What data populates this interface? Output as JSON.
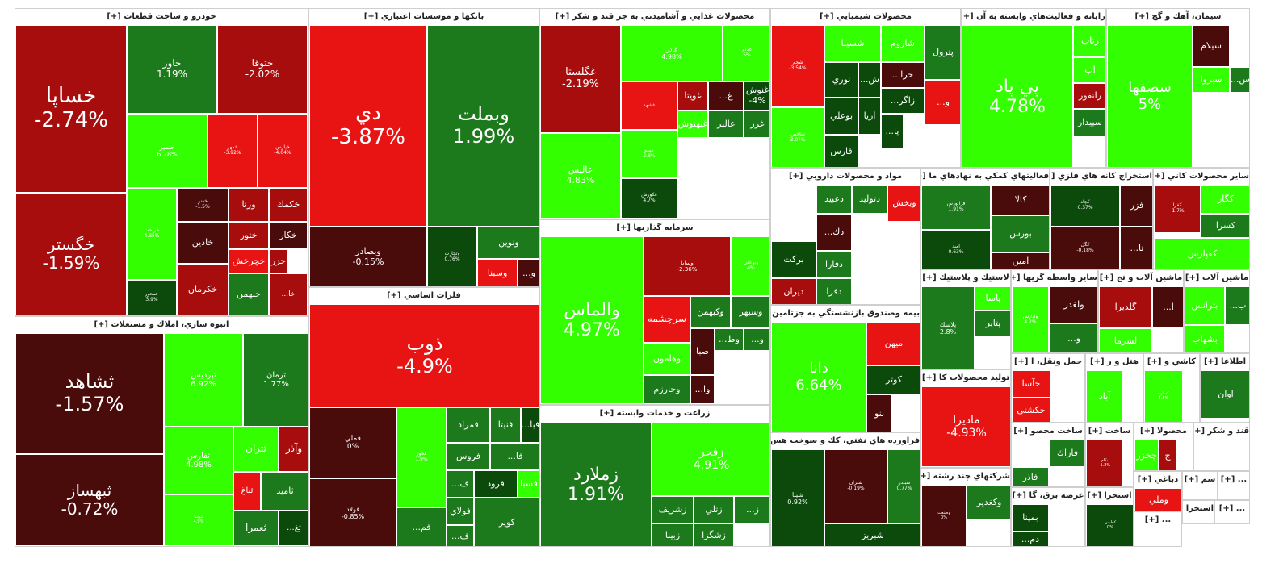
{
  "colors": {
    "dark_red": "#4a0b0b",
    "red": "#a80d0d",
    "bright_red": "#e81414",
    "dark_green": "#0c4a0c",
    "green": "#1c7a1c",
    "bright_green": "#33ff00"
  },
  "chart_data": {
    "type": "treemap",
    "title": "",
    "sectors": [
      {
        "name": "خودرو و ساخت قطعات [+]",
        "stocks": [
          {
            "symbol": "خساپا",
            "change": "-2.74%"
          },
          {
            "symbol": "خگستر",
            "change": "-1.59%"
          },
          {
            "symbol": "خاور",
            "change": "1.19%"
          },
          {
            "symbol": "ختوقا",
            "change": "-2.02%"
          },
          {
            "symbol": "ختمير",
            "change": "6.28%"
          },
          {
            "symbol": "خمهر",
            "change": "-3.92%"
          },
          {
            "symbol": "خپارس",
            "change": "-4.04%"
          },
          {
            "symbol": "خريخت",
            "change": "4.85%"
          },
          {
            "symbol": "خفنر",
            "change": "-1.5%"
          },
          {
            "symbol": "ورنا",
            "change": ""
          },
          {
            "symbol": "خكمك",
            "change": ""
          },
          {
            "symbol": "ختور",
            "change": ""
          },
          {
            "symbol": "خكار",
            "change": ""
          },
          {
            "symbol": "خاذين",
            "change": ""
          },
          {
            "symbol": "خچرخش",
            "change": ""
          },
          {
            "symbol": "خزر",
            "change": ""
          },
          {
            "symbol": "خمحور",
            "change": "3.9%"
          },
          {
            "symbol": "خكرمان",
            "change": ""
          },
          {
            "symbol": "خبهمن",
            "change": ""
          },
          {
            "symbol": "خا...",
            "change": ""
          }
        ]
      },
      {
        "name": "انبوه سازي، املاك و مستغلات [+]",
        "stocks": [
          {
            "symbol": "ثشاهد",
            "change": "-1.57%"
          },
          {
            "symbol": "ثبهساز",
            "change": "-0.72%"
          },
          {
            "symbol": "ثپرديس",
            "change": "6.92%"
          },
          {
            "symbol": "ثرمان",
            "change": "1.77%"
          },
          {
            "symbol": "ثفارس",
            "change": "4.98%"
          },
          {
            "symbol": "ثتران",
            "change": ""
          },
          {
            "symbol": "وآذر",
            "change": ""
          },
          {
            "symbol": "ثباغ",
            "change": ""
          },
          {
            "symbol": "ثاميد",
            "change": ""
          },
          {
            "symbol": "ثنوسا",
            "change": "4.9%"
          },
          {
            "symbol": "ثعمرا",
            "change": ""
          },
          {
            "symbol": "ثغ...",
            "change": ""
          }
        ]
      },
      {
        "name": "بانكها و موسسات اعتباري [+]",
        "stocks": [
          {
            "symbol": "دي",
            "change": "-3.87%"
          },
          {
            "symbol": "وبملت",
            "change": "1.99%"
          },
          {
            "symbol": "وبصادر",
            "change": "-0.15%"
          },
          {
            "symbol": "وتجارت",
            "change": "0.76%"
          },
          {
            "symbol": "ونوين",
            "change": ""
          },
          {
            "symbol": "وسينا",
            "change": ""
          },
          {
            "symbol": "و...",
            "change": ""
          }
        ]
      },
      {
        "name": "فلزات اساسي [+]",
        "stocks": [
          {
            "symbol": "ذوب",
            "change": "-4.9%"
          },
          {
            "symbol": "فملي",
            "change": "0%"
          },
          {
            "symbol": "فولاد",
            "change": "-0.85%"
          },
          {
            "symbol": "فخوز",
            "change": "1.9%"
          },
          {
            "symbol": "فمراد",
            "change": ""
          },
          {
            "symbol": "فنيتا",
            "change": ""
          },
          {
            "symbol": "فبا...",
            "change": ""
          },
          {
            "symbol": "فروس",
            "change": ""
          },
          {
            "symbol": "فا...",
            "change": ""
          },
          {
            "symbol": "ف...",
            "change": ""
          },
          {
            "symbol": "فرود",
            "change": ""
          },
          {
            "symbol": "فسبا",
            "change": ""
          },
          {
            "symbol": "فم...",
            "change": ""
          },
          {
            "symbol": "فولاي",
            "change": ""
          },
          {
            "symbol": "ف...",
            "change": ""
          },
          {
            "symbol": "كوير",
            "change": ""
          }
        ]
      },
      {
        "name": "محصولات غذايي و آشاميدني به جز قند و شكر [+]",
        "stocks": [
          {
            "symbol": "غگلستا",
            "change": "-2.19%"
          },
          {
            "symbol": "غاذر",
            "change": "4.98%"
          },
          {
            "symbol": "غدام",
            "change": "5%"
          },
          {
            "symbol": "عاليس",
            "change": "4.83%"
          },
          {
            "symbol": "غشهد",
            "change": ""
          },
          {
            "symbol": "غويتا",
            "change": ""
          },
          {
            "symbol": "غ...",
            "change": ""
          },
          {
            "symbol": "غنوش",
            "change": "-4%"
          },
          {
            "symbol": "غبهنوش",
            "change": ""
          },
          {
            "symbol": "غالبر",
            "change": ""
          },
          {
            "symbol": "غزر",
            "change": ""
          },
          {
            "symbol": "غپينو",
            "change": "3.8%"
          },
          {
            "symbol": "غكورش",
            "change": "4.7%"
          }
        ]
      },
      {
        "name": "سرمايه گذاريها [+]",
        "stocks": [
          {
            "symbol": "والماس",
            "change": "4.97%"
          },
          {
            "symbol": "وسايا",
            "change": "-2.36%"
          },
          {
            "symbol": "وبوعلي",
            "change": "4%"
          },
          {
            "symbol": "سرچشمه",
            "change": ""
          },
          {
            "symbol": "وكبهمن",
            "change": ""
          },
          {
            "symbol": "وسبهر",
            "change": ""
          },
          {
            "symbol": "وهامون",
            "change": ""
          },
          {
            "symbol": "صبا",
            "change": ""
          },
          {
            "symbol": "وخارزم",
            "change": ""
          },
          {
            "symbol": "وط...",
            "change": ""
          },
          {
            "symbol": "و...",
            "change": ""
          },
          {
            "symbol": "وا...",
            "change": ""
          }
        ]
      },
      {
        "name": "زراعت و خدمات وابسته [+]",
        "stocks": [
          {
            "symbol": "زملارد",
            "change": "1.91%"
          },
          {
            "symbol": "زفجر",
            "change": "4.91%"
          },
          {
            "symbol": "زشريف",
            "change": ""
          },
          {
            "symbol": "زتلي",
            "change": ""
          },
          {
            "symbol": "ز...",
            "change": ""
          },
          {
            "symbol": "زبينا",
            "change": ""
          },
          {
            "symbol": "زشگزا",
            "change": ""
          }
        ]
      },
      {
        "name": "محصولات شيميايي [+]",
        "stocks": [
          {
            "symbol": "شجم",
            "change": "-3.54%"
          },
          {
            "symbol": "شسينا",
            "change": ""
          },
          {
            "symbol": "شاروم",
            "change": ""
          },
          {
            "symbol": "پترول",
            "change": ""
          },
          {
            "symbol": "نوري",
            "change": ""
          },
          {
            "symbol": "ش...",
            "change": ""
          },
          {
            "symbol": "خرا...",
            "change": ""
          },
          {
            "symbol": "شاخص",
            "change": "3.07%"
          },
          {
            "symbol": "بوعلي",
            "change": ""
          },
          {
            "symbol": "زاگر...",
            "change": ""
          },
          {
            "symbol": "آريا",
            "change": ""
          },
          {
            "symbol": "و...",
            "change": ""
          },
          {
            "symbol": "فارس",
            "change": ""
          },
          {
            "symbol": "پا...",
            "change": ""
          }
        ]
      },
      {
        "name": "رايانه و فعاليت‌هاي وابسته به آن [+]",
        "stocks": [
          {
            "symbol": "پي پاد",
            "change": "4.78%"
          },
          {
            "symbol": "رتاب",
            "change": ""
          },
          {
            "symbol": "آپ",
            "change": ""
          },
          {
            "symbol": "رانفور",
            "change": ""
          },
          {
            "symbol": "سپيدار",
            "change": ""
          }
        ]
      },
      {
        "name": "سيمان، آهك و گچ [+]",
        "stocks": [
          {
            "symbol": "سصفها",
            "change": "5%"
          },
          {
            "symbol": "سيلام",
            "change": ""
          },
          {
            "symbol": "سبزوا",
            "change": ""
          },
          {
            "symbol": "س...",
            "change": ""
          }
        ]
      },
      {
        "name": "مواد و محصولات دارويي [+]",
        "stocks": [
          {
            "symbol": "دعبيد",
            "change": ""
          },
          {
            "symbol": "دتوليد",
            "change": ""
          },
          {
            "symbol": "ويخش",
            "change": ""
          },
          {
            "symbol": "دك...",
            "change": ""
          },
          {
            "symbol": "بركت",
            "change": ""
          },
          {
            "symbol": "دفارا",
            "change": ""
          },
          {
            "symbol": "ديران",
            "change": ""
          },
          {
            "symbol": "دفرا",
            "change": ""
          }
        ]
      },
      {
        "name": "بيمه وصندوق بازنشستگي به جزتامين [+]",
        "stocks": [
          {
            "symbol": "دانا",
            "change": "6.64%"
          },
          {
            "symbol": "ميهن",
            "change": ""
          },
          {
            "symbol": "كوثر",
            "change": ""
          },
          {
            "symbol": "بنو",
            "change": ""
          }
        ]
      },
      {
        "name": "فراورده هاي نفتي، كك و سوخت هس [+]",
        "stocks": [
          {
            "symbol": "شپنا",
            "change": "0.92%"
          },
          {
            "symbol": "شتران",
            "change": "-0.19%"
          },
          {
            "symbol": "شبندر",
            "change": "0.77%"
          },
          {
            "symbol": "شبريز",
            "change": ""
          }
        ]
      },
      {
        "name": "فعاليتهاي كمكي به نهادهاي ما [+]",
        "stocks": [
          {
            "symbol": "فرابورس",
            "change": "1.91%"
          },
          {
            "symbol": "كالا",
            "change": ""
          },
          {
            "symbol": "بورس",
            "change": ""
          },
          {
            "symbol": "اميد",
            "change": "0.63%"
          },
          {
            "symbol": "امين",
            "change": ""
          }
        ]
      },
      {
        "name": "استخراج كانه هاي فلزي [+]",
        "stocks": [
          {
            "symbol": "كچاد",
            "change": "0.37%"
          },
          {
            "symbol": "فزر",
            "change": ""
          },
          {
            "symbol": "كگل",
            "change": "-0.18%"
          },
          {
            "symbol": "تا...",
            "change": ""
          }
        ]
      },
      {
        "name": "ساير محصولات كاني [+]",
        "stocks": [
          {
            "symbol": "كفرا",
            "change": "-1.7%"
          },
          {
            "symbol": "كگاز",
            "change": ""
          },
          {
            "symbol": "كسرا",
            "change": ""
          },
          {
            "symbol": "كفپارس",
            "change": ""
          }
        ]
      },
      {
        "name": "لاستيك و پلاستيك [+]",
        "stocks": [
          {
            "symbol": "پلاسك",
            "change": "2.8%"
          },
          {
            "symbol": "پاسا",
            "change": ""
          },
          {
            "symbol": "پتاير",
            "change": ""
          }
        ]
      },
      {
        "name": "ساير واسطه گريها [+]",
        "stocks": [
          {
            "symbol": "ولغدر",
            "change": ""
          },
          {
            "symbol": "ولپارس",
            "change": "4.2%"
          },
          {
            "symbol": "و...",
            "change": ""
          }
        ]
      },
      {
        "name": "ماشين آلات و تج [+]",
        "stocks": [
          {
            "symbol": "گلديرا",
            "change": ""
          },
          {
            "symbol": "لسرما",
            "change": ""
          },
          {
            "symbol": "ا...",
            "change": ""
          }
        ]
      },
      {
        "name": "ماشين آلات [+]",
        "stocks": [
          {
            "symbol": "بترانس",
            "change": ""
          },
          {
            "symbol": "بشهاب",
            "change": ""
          },
          {
            "symbol": "ب...",
            "change": ""
          }
        ]
      },
      {
        "name": "حمل ونقل، ا [+]",
        "stocks": [
          {
            "symbol": "حآسا",
            "change": ""
          },
          {
            "symbol": "حكشتي",
            "change": ""
          }
        ]
      },
      {
        "name": "هتل و ر [+]",
        "stocks": [
          {
            "symbol": "آباد",
            "change": ""
          }
        ]
      },
      {
        "name": "كاشي و [+]",
        "stocks": [
          {
            "symbol": "كساوه",
            "change": "4.5%"
          }
        ]
      },
      {
        "name": "اطلاعا [+]",
        "stocks": [
          {
            "symbol": "اوان",
            "change": ""
          }
        ]
      },
      {
        "name": "توليد محصولات كا [+]",
        "stocks": [
          {
            "symbol": "ماديرا",
            "change": "-4.93%"
          }
        ]
      },
      {
        "name": "ساخت محصو [+]",
        "stocks": [
          {
            "symbol": "فاراك",
            "change": ""
          },
          {
            "symbol": "فاذر",
            "change": ""
          }
        ]
      },
      {
        "name": "ساخت [+]",
        "stocks": [
          {
            "symbol": "بكام",
            "change": "-1.2%"
          }
        ]
      },
      {
        "name": "محصولا [+]",
        "stocks": [
          {
            "symbol": "چخزر",
            "change": ""
          },
          {
            "symbol": "ج",
            "change": ""
          }
        ]
      },
      {
        "name": "قند و شكر [+]",
        "stocks": []
      },
      {
        "name": "شركتهاي چند رشته [+]",
        "stocks": [
          {
            "symbol": "وكغدير",
            "change": ""
          },
          {
            "symbol": "وصنعت",
            "change": "0%"
          }
        ]
      },
      {
        "name": "عرضه برق، گا [+]",
        "stocks": [
          {
            "symbol": "بمپنا",
            "change": ""
          },
          {
            "symbol": "دم...",
            "change": ""
          }
        ]
      },
      {
        "name": "استخرا [+]",
        "stocks": [
          {
            "symbol": "كطبس",
            "change": "0%"
          }
        ]
      },
      {
        "name": "دباغي [+]",
        "stocks": [
          {
            "symbol": "وملي",
            "change": ""
          }
        ]
      },
      {
        "name": "سم [+]",
        "stocks": []
      },
      {
        "name": "... [+]",
        "stocks": []
      },
      {
        "name": "... [+]",
        "stocks": []
      },
      {
        "name": "استخرا [+]",
        "stocks": []
      },
      {
        "name": "... [+]",
        "stocks": []
      },
      {
        "name": "... [+]",
        "stocks": []
      }
    ]
  }
}
